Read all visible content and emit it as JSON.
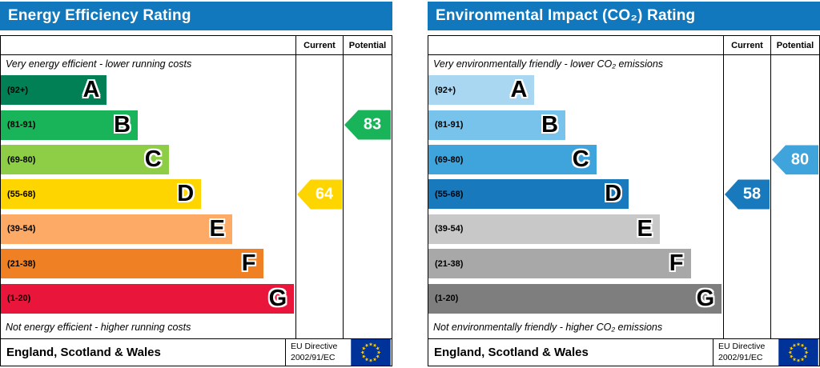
{
  "eu_flag": {
    "bg": "#003399",
    "stars": "#ffcc00"
  },
  "chart_data": [
    {
      "type": "bar",
      "title": "Energy Efficiency Rating",
      "header_bg": "#1278be",
      "col_headers": [
        "Current",
        "Potential"
      ],
      "top_note": "Very energy efficient - lower running costs",
      "bottom_note": "Not energy efficient - higher running costs",
      "bands": [
        {
          "range": "(92+)",
          "letter": "A",
          "color": "#008054",
          "width_pct": 36
        },
        {
          "range": "(81-91)",
          "letter": "B",
          "color": "#19b459",
          "width_pct": 46.5
        },
        {
          "range": "(69-80)",
          "letter": "C",
          "color": "#8dce46",
          "width_pct": 57
        },
        {
          "range": "(55-68)",
          "letter": "D",
          "color": "#ffd500",
          "width_pct": 68
        },
        {
          "range": "(39-54)",
          "letter": "E",
          "color": "#fcaa65",
          "width_pct": 78.5
        },
        {
          "range": "(21-38)",
          "letter": "F",
          "color": "#ef8023",
          "width_pct": 89
        },
        {
          "range": "(1-20)",
          "letter": "G",
          "color": "#e9153b",
          "width_pct": 99.5
        }
      ],
      "current": {
        "value": 64,
        "band": "D",
        "band_index": 3,
        "color": "#ffd500"
      },
      "potential": {
        "value": 83,
        "band": "B",
        "band_index": 1,
        "color": "#19b459"
      },
      "footer": {
        "region": "England, Scotland & Wales",
        "directive_line1": "EU Directive",
        "directive_line2": "2002/91/EC"
      }
    },
    {
      "type": "bar",
      "title": "Environmental Impact (CO₂) Rating",
      "header_bg": "#1278be",
      "col_headers": [
        "Current",
        "Potential"
      ],
      "top_note": "Very environmentally friendly - lower CO₂ emissions",
      "bottom_note": "Not environmentally friendly - higher CO₂ emissions",
      "bands": [
        {
          "range": "(92+)",
          "letter": "A",
          "color": "#a9d7f2",
          "width_pct": 36
        },
        {
          "range": "(81-91)",
          "letter": "B",
          "color": "#77c3ec",
          "width_pct": 46.5
        },
        {
          "range": "(69-80)",
          "letter": "C",
          "color": "#3fa3dc",
          "width_pct": 57
        },
        {
          "range": "(55-68)",
          "letter": "D",
          "color": "#1879bd",
          "width_pct": 68
        },
        {
          "range": "(39-54)",
          "letter": "E",
          "color": "#c8c8c8",
          "width_pct": 78.5
        },
        {
          "range": "(21-38)",
          "letter": "F",
          "color": "#a8a8a8",
          "width_pct": 89
        },
        {
          "range": "(1-20)",
          "letter": "G",
          "color": "#7e7e7e",
          "width_pct": 99.5
        }
      ],
      "current": {
        "value": 58,
        "band": "D",
        "band_index": 3,
        "color": "#1879bd"
      },
      "potential": {
        "value": 80,
        "band": "C",
        "band_index": 2,
        "color": "#3fa3dc"
      },
      "footer": {
        "region": "England, Scotland & Wales",
        "directive_line1": "EU Directive",
        "directive_line2": "2002/91/EC"
      }
    }
  ]
}
